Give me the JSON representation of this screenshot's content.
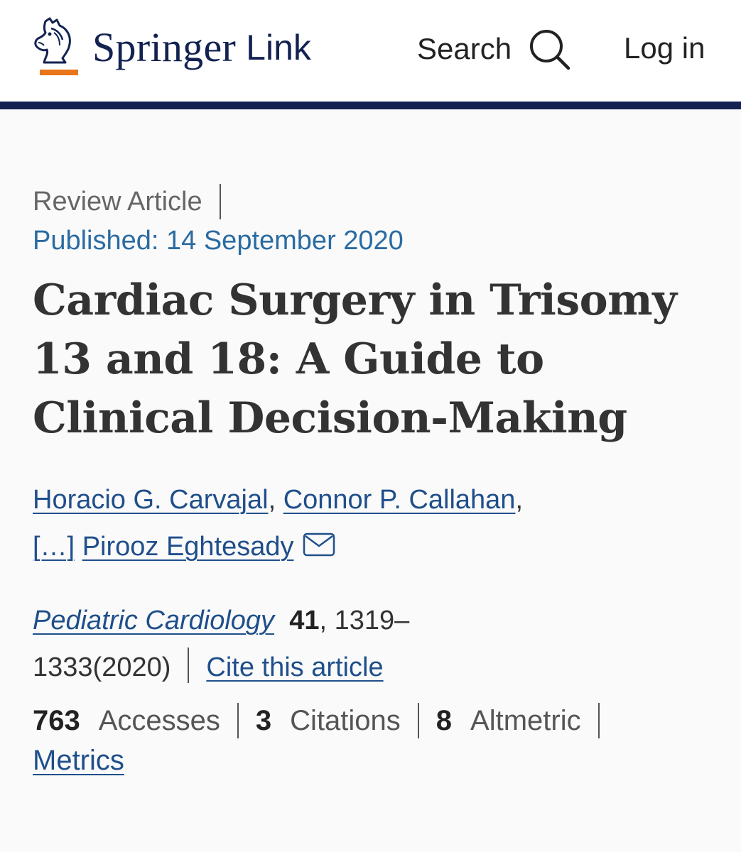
{
  "header": {
    "brand": "Springer",
    "brand_suffix": "Link",
    "search_label": "Search",
    "login_label": "Log in",
    "colors": {
      "navy": "#132251",
      "accent_orange": "#e8751a"
    },
    "icons": {
      "logo": "horse-head-logo-icon",
      "search": "search-icon"
    }
  },
  "article": {
    "type": "Review Article",
    "published": "Published: 14 September 2020",
    "title": "Cardiac Surgery in Trisomy 13 and 18: A Guide to Clinical Decision-Making",
    "authors": [
      {
        "name": "Horacio G. Carvajal"
      },
      {
        "name": "Connor P. Callahan"
      }
    ],
    "authors_more": "[…]",
    "corresponding_author": "Pirooz Eghtesady",
    "author_separator": ",",
    "journal": {
      "name": "Pediatric Cardiology",
      "volume": "41",
      "pages_start": ", 1319–",
      "pages_end": "1333(2020)",
      "cite_label": "Cite this article"
    },
    "metrics": {
      "accesses_count": "763",
      "accesses_label": "Accesses",
      "citations_count": "3",
      "citations_label": "Citations",
      "altmetric_count": "8",
      "altmetric_label": "Altmetric",
      "metrics_link": "Metrics"
    },
    "link_color": "#1f4f8b",
    "published_color": "#2a6ba2"
  }
}
